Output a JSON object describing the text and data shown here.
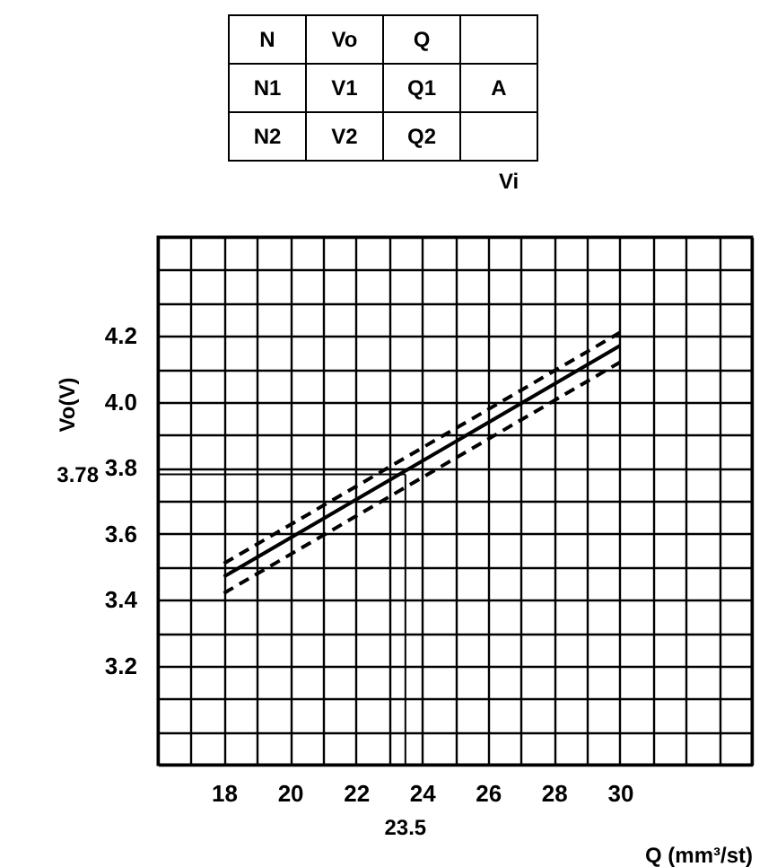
{
  "chart_data": {
    "type": "line",
    "xlabel": "Q (mm³/st)",
    "ylabel": "Vo(V)",
    "xlim": [
      16,
      34
    ],
    "ylim": [
      2.9,
      4.5
    ],
    "xticks": [
      {
        "value": 16,
        "label": null
      },
      {
        "value": 17,
        "label": null
      },
      18,
      {
        "value": 19,
        "label": null
      },
      20,
      {
        "value": 21,
        "label": null
      },
      22,
      {
        "value": 23,
        "label": null
      },
      24,
      {
        "value": 25,
        "label": null
      },
      26,
      {
        "value": 27,
        "label": null
      },
      28,
      {
        "value": 29,
        "label": null
      },
      30,
      {
        "value": 31,
        "label": null
      },
      {
        "value": 32,
        "label": null
      },
      {
        "value": 33,
        "label": null
      },
      {
        "value": 34,
        "label": null
      }
    ],
    "yticks": [
      {
        "value": 2.9,
        "label": null
      },
      {
        "value": 3.0,
        "label": null
      },
      {
        "value": 3.1,
        "label": null
      },
      {
        "value": 3.2,
        "label": "3.2"
      },
      {
        "value": 3.3,
        "label": null
      },
      {
        "value": 3.4,
        "label": "3.4"
      },
      {
        "value": 3.5,
        "label": null
      },
      {
        "value": 3.6,
        "label": "3.6"
      },
      {
        "value": 3.7,
        "label": null
      },
      {
        "value": 3.8,
        "label": "3.8"
      },
      {
        "value": 3.9,
        "label": null
      },
      {
        "value": 4.0,
        "label": "4.0"
      },
      {
        "value": 4.1,
        "label": null
      },
      {
        "value": 4.2,
        "label": "4.2"
      },
      {
        "value": 4.3,
        "label": null
      },
      {
        "value": 4.4,
        "label": null
      },
      {
        "value": 4.5,
        "label": null
      }
    ],
    "grid": true,
    "x": [
      18,
      30
    ],
    "series": [
      {
        "color": "#000000",
        "line_style": "solid",
        "values": [
          3.47,
          4.17
        ]
      },
      {
        "color": "#000000",
        "line_style": "dashed",
        "values": [
          3.51,
          4.21
        ]
      },
      {
        "color": "#000000",
        "line_style": "dashed",
        "values": [
          3.42,
          4.12
        ]
      }
    ],
    "ref_lines": [
      {
        "axis": "y",
        "value": 3.78,
        "label": "3.78"
      },
      {
        "axis": "x",
        "value": 23.5,
        "label": "23.5"
      }
    ],
    "annotations": [
      "N",
      "Vo",
      "Q",
      "N1",
      "V1",
      "Q1",
      "A",
      "N2",
      "V2",
      "Q2",
      "Vi"
    ]
  }
}
